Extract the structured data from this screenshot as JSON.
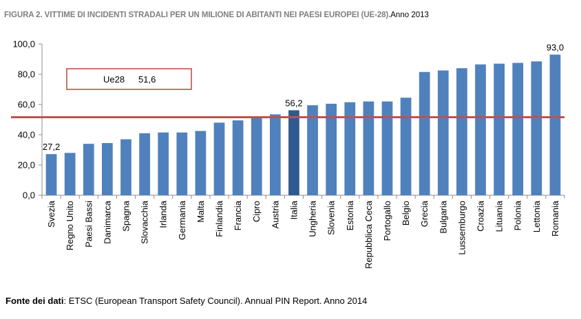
{
  "header": {
    "title_main": "FIGURA 2. VITTIME DI INCIDENTI STRADALI PER UN MILIONE DI ABITANTI NEI PAESI EUROPEI (UE-28).",
    "title_sub": "Anno 2013"
  },
  "footer": {
    "source_label": "Fonte dei dati",
    "source_text": ": ETSC (European Transport Safety Council). Annual PIN Report. Anno 2014"
  },
  "colors": {
    "bar": "#4f81bd",
    "bar_highlight": "#2f5a8f",
    "reference_line": "#c0504d",
    "axis": "#8c8c8c"
  },
  "chart_data": {
    "type": "bar",
    "title": "Vittime di incidenti stradali per un milione di abitanti nei paesi europei (UE-28). Anno 2013",
    "xlabel": "",
    "ylabel": "",
    "ylim": [
      0,
      100
    ],
    "yticks": [
      0,
      20,
      40,
      60,
      80,
      100
    ],
    "ytick_labels": [
      "0,0",
      "20,0",
      "40,0",
      "60,0",
      "80,0",
      "100,0"
    ],
    "grid": false,
    "categories": [
      "Svezia",
      "Regno Unito",
      "Paesi Bassi",
      "Danimarca",
      "Spagna",
      "Slovacchia",
      "Irlanda",
      "Germania",
      "Malta",
      "Finlandia",
      "Francia",
      "Cipro",
      "Austria",
      "Italia",
      "Ungheria",
      "Slovenia",
      "Estonia",
      "Repubblica Ceca",
      "Portogallo",
      "Belgio",
      "Grecia",
      "Bulgaria",
      "Lussemburgo",
      "Croazia",
      "Lituania",
      "Polonia",
      "Lettonia",
      "Romania"
    ],
    "values": [
      27.2,
      28,
      34,
      34.5,
      37,
      41,
      41.5,
      41.5,
      42.5,
      48,
      49.5,
      51,
      53.5,
      56.2,
      59.5,
      60.5,
      61.5,
      62,
      62,
      64.5,
      81.5,
      82.5,
      84,
      86.5,
      87,
      87.5,
      88.5,
      93.0
    ],
    "highlight_category": "Italia",
    "data_labels": [
      {
        "category": "Svezia",
        "text": "27,2"
      },
      {
        "category": "Italia",
        "text": "56,2"
      },
      {
        "category": "Romania",
        "text": "93,0"
      }
    ],
    "reference": {
      "name": "Ue28",
      "value": 51.6,
      "value_text": "51,6"
    },
    "legend": "none"
  }
}
